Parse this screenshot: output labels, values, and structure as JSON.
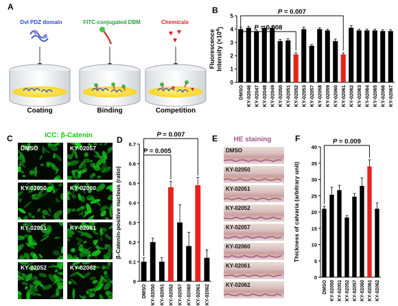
{
  "panelA": {
    "letter": "A",
    "steps": [
      {
        "title": "Dvl PDZ domain",
        "color": "#2a4bd1",
        "caption": "Coating"
      },
      {
        "title": "FITC-conjugated DBM",
        "color": "#2a9e3a",
        "caption": "Binding"
      },
      {
        "title": "Chemicals",
        "color": "#e0241e",
        "caption": "Competition"
      }
    ]
  },
  "panelB": {
    "letter": "B",
    "chart_data": {
      "type": "bar",
      "ylabel": "Fluorescence Intensity (×10⁴)",
      "ylabel_line1": "Fluorescence",
      "ylabel_line2": "Intensity (×10",
      "ylabel_sup": "4",
      "ylabel_close": ")",
      "ylim": [
        0,
        5
      ],
      "yticks": [
        0,
        1,
        2,
        3,
        4,
        5
      ],
      "categories": [
        "DMSO",
        "KY-02046",
        "KY-02047",
        "KY-02048",
        "KY-02049",
        "KY-02050",
        "KY-02051",
        "KY-02052",
        "KY-02053",
        "KY-02057",
        "KY-02058",
        "KY-02059",
        "KY-02060",
        "KY-02061",
        "KY-02062",
        "KY-02063",
        "KY-02064",
        "KY-02065",
        "KY-02066",
        "KY-02067"
      ],
      "values": [
        4.0,
        4.1,
        3.85,
        4.1,
        4.1,
        3.1,
        3.15,
        2.1,
        4.0,
        2.75,
        4.0,
        3.9,
        3.1,
        2.1,
        4.1,
        3.9,
        3.9,
        3.9,
        3.85,
        3.85
      ],
      "errors": [
        0.15,
        0.12,
        0.1,
        0.12,
        0.12,
        0.12,
        0.12,
        0.12,
        0.15,
        0.1,
        0.1,
        0.1,
        0.15,
        0.12,
        0.15,
        0.1,
        0.1,
        0.1,
        0.1,
        0.1
      ],
      "highlight": [
        "KY-02052",
        "KY-02061"
      ],
      "brackets": [
        {
          "from": "DMSO",
          "to": "KY-02052",
          "label_p": "P",
          "label_val": " = 0.008"
        },
        {
          "from": "DMSO",
          "to": "KY-02061",
          "label_p": "P",
          "label_val": " = 0.007"
        }
      ],
      "colors": {
        "normal": "#000000",
        "highlight": "#e8221c"
      }
    }
  },
  "panelC": {
    "letter": "C",
    "title_prefix": "ICC: ",
    "title_main": "β-Catenin",
    "title_color": "#18c418",
    "labels": [
      "DMSO",
      "KY-02057",
      "KY-02050",
      "KY-02060",
      "KY-02051",
      "KY-02061",
      "KY-02052",
      "KY-02062"
    ]
  },
  "panelD": {
    "letter": "D",
    "chart_data": {
      "type": "bar",
      "ylabel": "β-Catenin-positive nucleus (ratio)",
      "ylim": [
        0,
        0.7
      ],
      "yticks": [
        0,
        0.1,
        0.2,
        0.3,
        0.4,
        0.5,
        0.6,
        0.7
      ],
      "ytick_labels": [
        "0",
        "0.1",
        "0.2",
        "0.3",
        "0.4",
        "0.5",
        "0.6",
        "0.7"
      ],
      "categories": [
        "DMSO",
        "KY-02050",
        "KY-02051",
        "KY-02052",
        "KY-02057",
        "KY-02060",
        "KY-02061",
        "KY-02062"
      ],
      "values": [
        0.1,
        0.2,
        0.1,
        0.48,
        0.3,
        0.18,
        0.49,
        0.12
      ],
      "errors": [
        0.02,
        0.02,
        0.02,
        0.03,
        0.09,
        0.07,
        0.04,
        0.04
      ],
      "highlight": [
        "KY-02052",
        "KY-02061"
      ],
      "brackets": [
        {
          "from": "DMSO",
          "to": "KY-02052",
          "label_p": "P",
          "label_val": " = 0.005"
        },
        {
          "from": "DMSO",
          "to": "KY-02061",
          "label_p": "P",
          "label_val": " = 0.007"
        }
      ],
      "colors": {
        "normal": "#000000",
        "highlight": "#e8221c"
      }
    }
  },
  "panelE": {
    "letter": "E",
    "title": "HE staining",
    "title_color": "#9a5a8a",
    "labels": [
      "DMSO",
      "KY-02050",
      "KY-02051",
      "KY-02052",
      "KY-02057",
      "KY-02060",
      "KY-02061",
      "KY-02062"
    ]
  },
  "panelF": {
    "letter": "F",
    "chart_data": {
      "type": "bar",
      "ylabel": "Thickness of calvaria (arbitrary unit)",
      "ylim": [
        0,
        40
      ],
      "yticks": [
        0,
        5,
        10,
        15,
        20,
        25,
        30,
        35,
        40
      ],
      "categories": [
        "DMSO",
        "KY-02050",
        "KY-02051",
        "KY-02052",
        "KY-02057",
        "KY-02060",
        "KY-02061",
        "KY-02062"
      ],
      "values": [
        21,
        25.3,
        26.7,
        18.3,
        24.7,
        28,
        34,
        21
      ],
      "errors": [
        0.8,
        2.3,
        1.5,
        0.6,
        1.0,
        2.5,
        2.0,
        1.8
      ],
      "highlight": [
        "KY-02061"
      ],
      "brackets": [
        {
          "from": "DMSO",
          "to": "KY-02061",
          "label_p": "P",
          "label_val": " = 0.009"
        }
      ],
      "colors": {
        "normal": "#000000",
        "highlight": "#e8221c"
      }
    }
  }
}
